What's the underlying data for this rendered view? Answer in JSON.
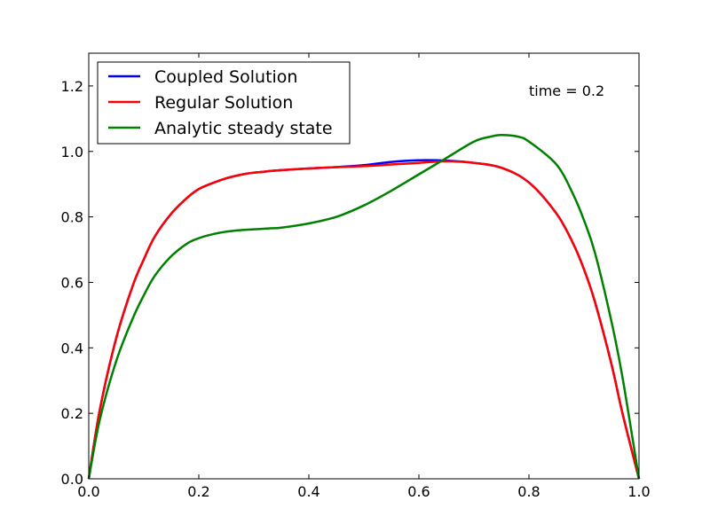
{
  "chart_data": {
    "type": "line",
    "title": "",
    "xlabel": "",
    "ylabel": "",
    "xlim": [
      0.0,
      1.0
    ],
    "ylim": [
      0.0,
      1.3
    ],
    "x_ticks": [
      "0.0",
      "0.2",
      "0.4",
      "0.6",
      "0.8",
      "1.0"
    ],
    "y_ticks": [
      "0.0",
      "0.2",
      "0.4",
      "0.6",
      "0.8",
      "1.0",
      "1.2"
    ],
    "grid": false,
    "legend_position": "top-left",
    "annotation": "time = 0.2",
    "series": [
      {
        "name": "Coupled Solution",
        "color": "#0000ff",
        "x": [
          0.0,
          0.02,
          0.05,
          0.08,
          0.1,
          0.12,
          0.15,
          0.18,
          0.2,
          0.22,
          0.25,
          0.28,
          0.3,
          0.33,
          0.35,
          0.4,
          0.45,
          0.5,
          0.55,
          0.6,
          0.65,
          0.7,
          0.75,
          0.8,
          0.85,
          0.88,
          0.9,
          0.92,
          0.95,
          0.97,
          1.0
        ],
        "y": [
          0.0,
          0.21,
          0.43,
          0.59,
          0.67,
          0.74,
          0.81,
          0.86,
          0.885,
          0.9,
          0.918,
          0.93,
          0.935,
          0.94,
          0.943,
          0.948,
          0.952,
          0.958,
          0.968,
          0.973,
          0.972,
          0.965,
          0.95,
          0.905,
          0.81,
          0.72,
          0.64,
          0.54,
          0.35,
          0.2,
          0.0
        ]
      },
      {
        "name": "Regular Solution",
        "color": "#ff0000",
        "x": [
          0.0,
          0.02,
          0.05,
          0.08,
          0.1,
          0.12,
          0.15,
          0.18,
          0.2,
          0.22,
          0.25,
          0.28,
          0.3,
          0.33,
          0.35,
          0.4,
          0.45,
          0.5,
          0.55,
          0.6,
          0.65,
          0.7,
          0.75,
          0.8,
          0.85,
          0.88,
          0.9,
          0.92,
          0.95,
          0.97,
          1.0
        ],
        "y": [
          0.0,
          0.21,
          0.43,
          0.59,
          0.67,
          0.74,
          0.81,
          0.86,
          0.885,
          0.9,
          0.918,
          0.93,
          0.935,
          0.94,
          0.943,
          0.948,
          0.952,
          0.955,
          0.96,
          0.965,
          0.97,
          0.965,
          0.95,
          0.905,
          0.81,
          0.72,
          0.64,
          0.54,
          0.35,
          0.2,
          0.0
        ]
      },
      {
        "name": "Analytic steady state",
        "color": "#008000",
        "x": [
          0.0,
          0.02,
          0.05,
          0.08,
          0.1,
          0.12,
          0.15,
          0.18,
          0.2,
          0.22,
          0.25,
          0.28,
          0.3,
          0.33,
          0.35,
          0.4,
          0.45,
          0.5,
          0.55,
          0.6,
          0.65,
          0.7,
          0.73,
          0.75,
          0.78,
          0.8,
          0.85,
          0.88,
          0.9,
          0.92,
          0.95,
          0.97,
          1.0
        ],
        "y": [
          0.0,
          0.18,
          0.36,
          0.49,
          0.56,
          0.62,
          0.68,
          0.72,
          0.735,
          0.745,
          0.755,
          0.76,
          0.762,
          0.765,
          0.767,
          0.78,
          0.8,
          0.835,
          0.88,
          0.93,
          0.98,
          1.03,
          1.045,
          1.05,
          1.045,
          1.03,
          0.96,
          0.87,
          0.79,
          0.69,
          0.48,
          0.31,
          0.0
        ]
      }
    ]
  }
}
